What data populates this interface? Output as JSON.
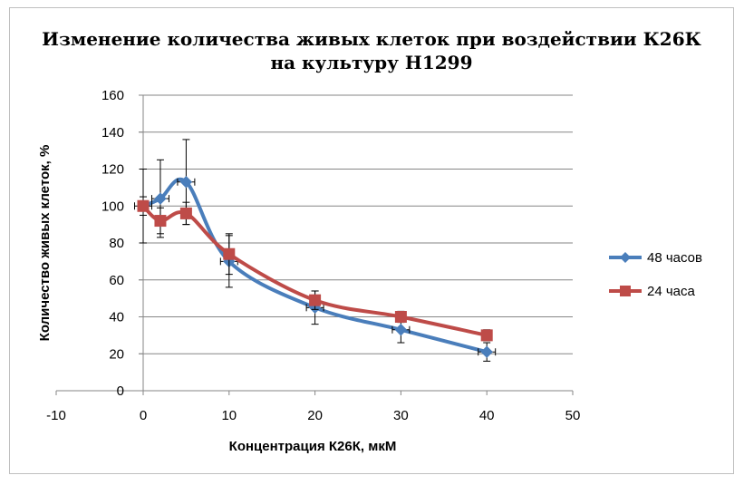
{
  "chart_data": {
    "type": "scatter",
    "title_line1": "Изменение количества живых клеток при воздействии К26К",
    "title_line2": "на культуру Н1299",
    "xlabel": "Концентрация К26К, мкМ",
    "ylabel": "Количество живых клеток, %",
    "xlim": [
      -10,
      50
    ],
    "ylim": [
      0,
      160
    ],
    "x_ticks": [
      -10,
      0,
      10,
      20,
      30,
      40,
      50
    ],
    "y_ticks": [
      0,
      20,
      40,
      60,
      80,
      100,
      120,
      140,
      160
    ],
    "grid": "horizontal",
    "legend_position": "right",
    "series": [
      {
        "name": "48 часов",
        "color": "#4a7ebb",
        "marker": "diamond",
        "smooth": true,
        "x": [
          0,
          2,
          5,
          10,
          20,
          30,
          40
        ],
        "y": [
          100,
          104,
          113,
          70,
          45,
          33,
          21
        ],
        "yerr": [
          20,
          21,
          23,
          14,
          9,
          7,
          5
        ],
        "xerr": [
          1,
          1,
          1,
          1,
          1,
          1,
          1
        ]
      },
      {
        "name": "24 часа",
        "color": "#be4b48",
        "marker": "square",
        "smooth": true,
        "x": [
          0,
          2,
          5,
          10,
          20,
          30,
          40
        ],
        "y": [
          100,
          92,
          96,
          74,
          49,
          40,
          30
        ],
        "yerr": [
          5,
          7,
          6,
          11,
          5,
          3,
          3
        ],
        "xerr": [
          0,
          0,
          0,
          0,
          0,
          0,
          0
        ]
      }
    ]
  }
}
